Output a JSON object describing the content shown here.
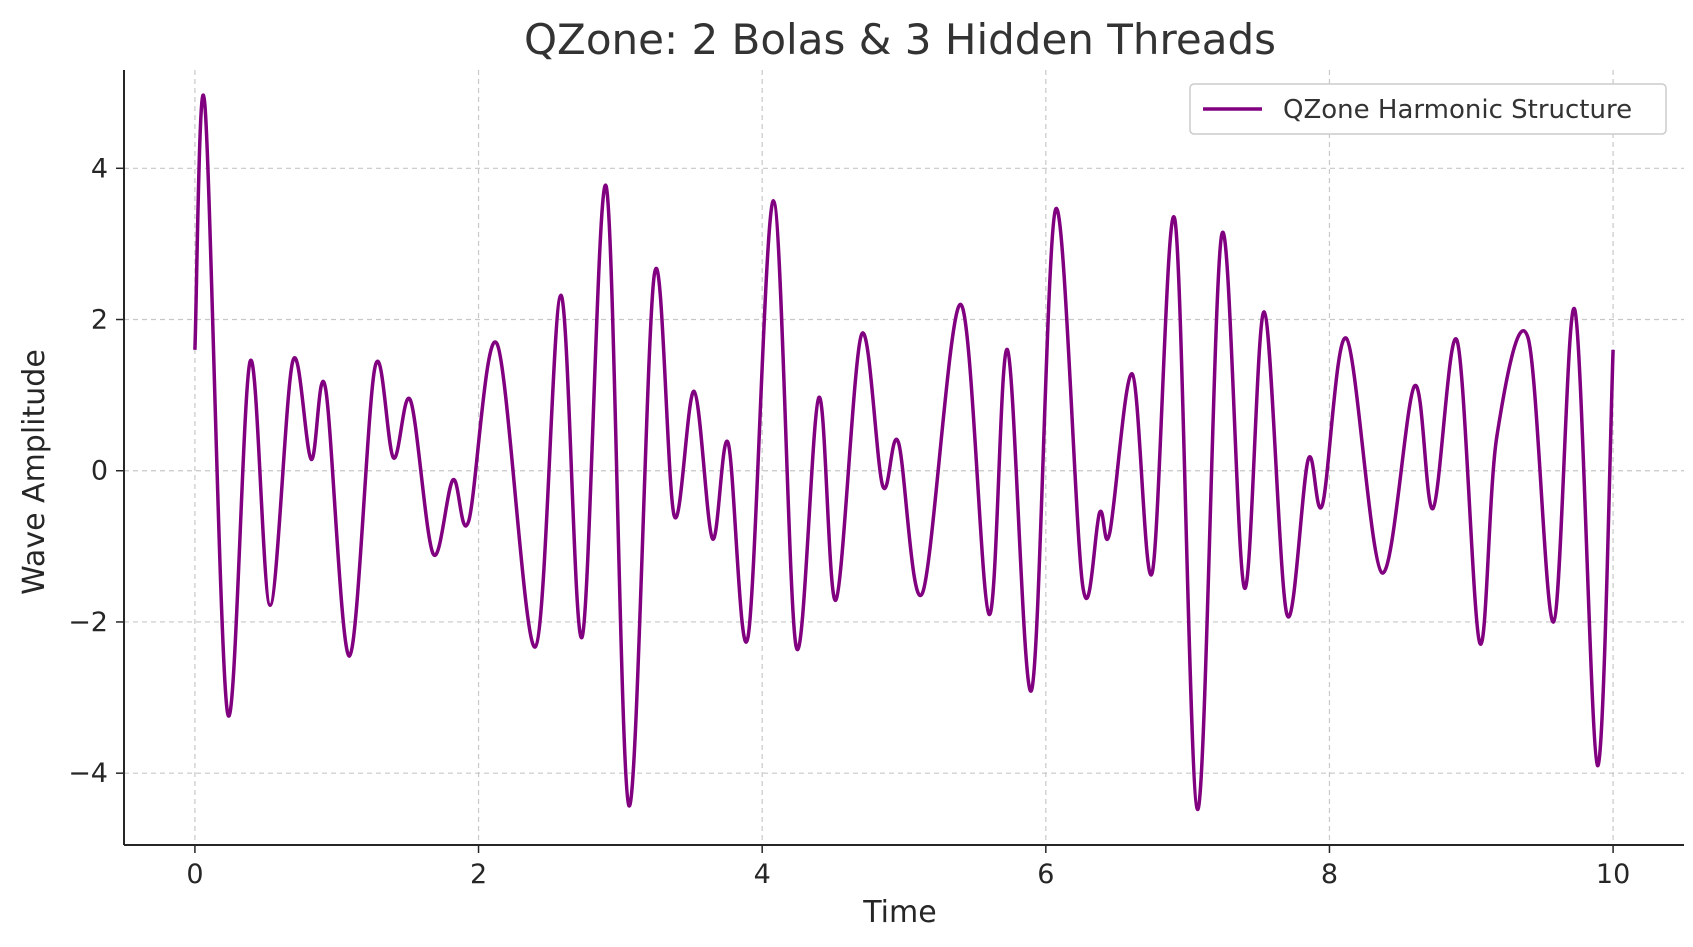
{
  "chart_data": {
    "type": "line",
    "title": "QZone: 2 Bolas & 3 Hidden Threads",
    "xlabel": "Time",
    "ylabel": "Wave Amplitude",
    "xlim": [
      -0.5,
      10.5
    ],
    "ylim": [
      -4.95,
      5.3
    ],
    "x_ticks": [
      0,
      2,
      4,
      6,
      8,
      10
    ],
    "x_tick_labels": [
      "0",
      "2",
      "4",
      "6",
      "8",
      "10"
    ],
    "y_ticks": [
      -4,
      -2,
      0,
      2,
      4
    ],
    "y_tick_labels": [
      "−4",
      "−2",
      "0",
      "2",
      "4"
    ],
    "grid": true,
    "grid_style": "dashed",
    "legend_position": "top-right",
    "series": [
      {
        "name": "QZone Harmonic Structure",
        "color": "#800080",
        "points": [
          [
            0.0,
            1.6
          ],
          [
            0.07,
            4.85
          ],
          [
            0.23,
            -3.2
          ],
          [
            0.39,
            1.45
          ],
          [
            0.53,
            -1.78
          ],
          [
            0.69,
            1.45
          ],
          [
            0.82,
            0.15
          ],
          [
            0.92,
            1.1
          ],
          [
            1.09,
            -2.45
          ],
          [
            1.27,
            1.37
          ],
          [
            1.4,
            0.17
          ],
          [
            1.52,
            0.93
          ],
          [
            1.68,
            -1.1
          ],
          [
            1.82,
            -0.12
          ],
          [
            1.93,
            -0.67
          ],
          [
            2.13,
            1.68
          ],
          [
            2.4,
            -2.33
          ],
          [
            2.58,
            2.32
          ],
          [
            2.73,
            -2.2
          ],
          [
            2.9,
            3.76
          ],
          [
            3.06,
            -4.43
          ],
          [
            3.24,
            2.6
          ],
          [
            3.38,
            -0.6
          ],
          [
            3.52,
            1.05
          ],
          [
            3.65,
            -0.9
          ],
          [
            3.76,
            0.37
          ],
          [
            3.9,
            -2.2
          ],
          [
            4.08,
            3.57
          ],
          [
            4.24,
            -2.33
          ],
          [
            4.4,
            0.97
          ],
          [
            4.52,
            -1.71
          ],
          [
            4.7,
            1.8
          ],
          [
            4.85,
            -0.2
          ],
          [
            4.96,
            0.38
          ],
          [
            5.13,
            -1.62
          ],
          [
            5.4,
            2.2
          ],
          [
            5.6,
            -1.9
          ],
          [
            5.73,
            1.6
          ],
          [
            5.9,
            -2.9
          ],
          [
            6.07,
            3.46
          ],
          [
            6.26,
            -1.52
          ],
          [
            6.38,
            -0.55
          ],
          [
            6.45,
            -0.83
          ],
          [
            6.61,
            1.28
          ],
          [
            6.75,
            -1.35
          ],
          [
            6.91,
            3.32
          ],
          [
            7.07,
            -4.48
          ],
          [
            7.24,
            3.12
          ],
          [
            7.4,
            -1.55
          ],
          [
            7.54,
            2.1
          ],
          [
            7.7,
            -1.9
          ],
          [
            7.85,
            0.15
          ],
          [
            7.95,
            -0.45
          ],
          [
            8.12,
            1.75
          ],
          [
            8.37,
            -1.35
          ],
          [
            8.6,
            1.12
          ],
          [
            8.73,
            -0.5
          ],
          [
            8.9,
            1.72
          ],
          [
            9.06,
            -2.28
          ],
          [
            9.18,
            0.45
          ],
          [
            9.4,
            1.76
          ],
          [
            9.58,
            -2.0
          ],
          [
            9.73,
            2.13
          ],
          [
            9.89,
            -3.9
          ],
          [
            10.0,
            1.6
          ]
        ]
      }
    ]
  }
}
